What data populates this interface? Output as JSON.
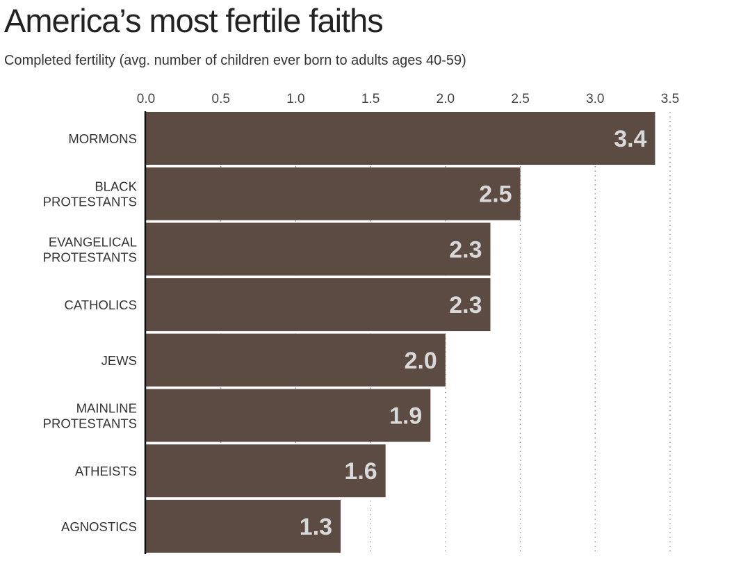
{
  "chart_data": {
    "type": "bar",
    "orientation": "horizontal",
    "title": "America’s most fertile faiths",
    "subtitle": "Completed fertility (avg. number of children ever born to adults ages 40-59)",
    "categories": [
      "MORMONS",
      "BLACK PROTESTANTS",
      "EVANGELICAL PROTESTANTS",
      "CATHOLICS",
      "JEWS",
      "MAINLINE PROTESTANTS",
      "ATHEISTS",
      "AGNOSTICS"
    ],
    "values": [
      3.4,
      2.5,
      2.3,
      2.3,
      2.0,
      1.9,
      1.6,
      1.3
    ],
    "data_labels": [
      "3.4",
      "2.5",
      "2.3",
      "2.3",
      "2.0",
      "1.9",
      "1.6",
      "1.3"
    ],
    "xticks": [
      "0.0",
      "0.5",
      "1.0",
      "1.5",
      "2.0",
      "2.5",
      "3.0",
      "3.5"
    ],
    "xlim": [
      0,
      3.5
    ],
    "xlabel": "",
    "ylabel": "",
    "grid": "vertical dotted",
    "colors": {
      "bar": "#5b4b43",
      "label": "#d9d9d9",
      "grid": "#9a9a9a"
    }
  }
}
